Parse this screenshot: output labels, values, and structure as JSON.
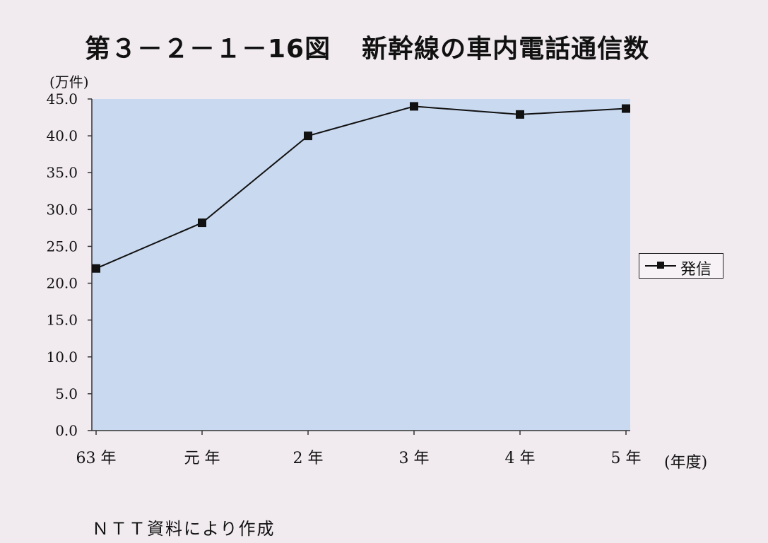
{
  "title": {
    "figure_no": "第３－２－１－16図",
    "text": "新幹線の車内電話通信数"
  },
  "source_note": "ＮＴＴ資料により作成",
  "chart_data": {
    "type": "line",
    "title": "新幹線の車内電話通信数",
    "ylabel": "(万件)",
    "xlabel": "(年度)",
    "categories": [
      "63 年",
      "元 年",
      "2 年",
      "3 年",
      "4 年",
      "5 年"
    ],
    "series": [
      {
        "name": "発信",
        "values": [
          22.0,
          28.2,
          40.0,
          44.0,
          42.9,
          43.7
        ]
      }
    ],
    "ylim": [
      0,
      45
    ],
    "yticks": [
      "0.0",
      "5.0",
      "10.0",
      "15.0",
      "20.0",
      "25.0",
      "30.0",
      "35.0",
      "40.0",
      "45.0"
    ],
    "grid": false,
    "legend_position": "right",
    "plot_background": "#c9d9ef",
    "line_color": "#111111"
  }
}
